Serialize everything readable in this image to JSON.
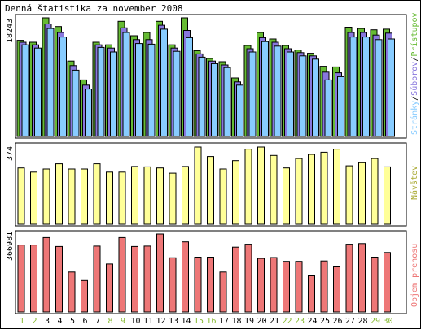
{
  "title": "Denná štatistika za november 2008",
  "colors": {
    "pages": "#66bb33",
    "files": "#8877dd",
    "hits": "#88ccff",
    "visits": "#ffff99",
    "kbytes": "#ee7777",
    "weekend_label": "#88bb33",
    "weekday_label": "#000000",
    "visits_label": "#aaaa33",
    "side_hits": "#88ccff",
    "side_files": "#8877dd",
    "side_pages": "#66bb33"
  },
  "side_labels": {
    "panel1_hits": "Stránky",
    "panel1_files": "Súborov",
    "panel1_pages": "Prístupov",
    "panel2": "Návštev",
    "panel3": "Objem prenosu"
  },
  "chart_data": [
    {
      "type": "bar",
      "panel": "hits-files-pages",
      "ymax_label": "18243",
      "ylim": [
        0,
        18243
      ],
      "categories": [
        "1",
        "2",
        "3",
        "4",
        "5",
        "6",
        "7",
        "8",
        "9",
        "10",
        "11",
        "12",
        "13",
        "14",
        "15",
        "16",
        "17",
        "18",
        "19",
        "20",
        "21",
        "22",
        "23",
        "24",
        "25",
        "26",
        "27",
        "28",
        "29",
        "30"
      ],
      "weekend": [
        1,
        2,
        8,
        9,
        15,
        16,
        22,
        23,
        29,
        30
      ],
      "series": [
        {
          "name": "Prístupov",
          "values": [
            14800,
            14500,
            18243,
            16900,
            11600,
            8700,
            14500,
            14100,
            17700,
            15500,
            16000,
            17700,
            14100,
            18243,
            13200,
            12000,
            11500,
            9000,
            14000,
            16000,
            15000,
            14000,
            13300,
            12800,
            10800,
            10700,
            16800,
            16600,
            16400,
            16500
          ]
        },
        {
          "name": "Súborov",
          "values": [
            14500,
            14100,
            17300,
            16000,
            10900,
            7900,
            14100,
            13600,
            16700,
            14900,
            14900,
            17100,
            13600,
            16300,
            12700,
            11600,
            11000,
            8400,
            13500,
            15200,
            14500,
            13500,
            12900,
            12400,
            9900,
            9800,
            16000,
            16000,
            15600,
            15900
          ]
        },
        {
          "name": "Stránky",
          "values": [
            14100,
            13600,
            16600,
            15300,
            10200,
            7300,
            13700,
            13000,
            16000,
            14300,
            14200,
            16500,
            13100,
            15200,
            12200,
            11200,
            10600,
            7900,
            13000,
            14600,
            13900,
            13000,
            12400,
            11900,
            8700,
            9200,
            15300,
            15300,
            14900,
            15000
          ]
        }
      ]
    },
    {
      "type": "bar",
      "panel": "visits",
      "ymax_label": "374",
      "ylim": [
        0,
        374
      ],
      "categories": [
        "1",
        "2",
        "3",
        "4",
        "5",
        "6",
        "7",
        "8",
        "9",
        "10",
        "11",
        "12",
        "13",
        "14",
        "15",
        "16",
        "17",
        "18",
        "19",
        "20",
        "21",
        "22",
        "23",
        "24",
        "25",
        "26",
        "27",
        "28",
        "29",
        "30"
      ],
      "series": [
        {
          "name": "Návštev",
          "values": [
            270,
            250,
            265,
            290,
            265,
            265,
            290,
            250,
            250,
            277,
            275,
            270,
            245,
            277,
            370,
            325,
            265,
            305,
            360,
            370,
            330,
            270,
            315,
            335,
            345,
            360,
            280,
            295,
            315,
            275
          ]
        }
      ]
    },
    {
      "type": "bar",
      "panel": "kbytes",
      "ymax_label": "366981",
      "ylim": [
        0,
        366981
      ],
      "categories": [
        "1",
        "2",
        "3",
        "4",
        "5",
        "6",
        "7",
        "8",
        "9",
        "10",
        "11",
        "12",
        "13",
        "14",
        "15",
        "16",
        "17",
        "18",
        "19",
        "20",
        "21",
        "22",
        "23",
        "24",
        "25",
        "26",
        "27",
        "28",
        "29",
        "30"
      ],
      "series": [
        {
          "name": "Objem prenosu",
          "values": [
            315000,
            315000,
            350000,
            308000,
            188000,
            148000,
            310000,
            226000,
            350000,
            308000,
            310000,
            366981,
            255000,
            330000,
            258000,
            258000,
            188000,
            305000,
            319000,
            252000,
            256000,
            238000,
            238000,
            170000,
            240000,
            212000,
            319000,
            322000,
            258000,
            280000
          ]
        }
      ]
    }
  ]
}
